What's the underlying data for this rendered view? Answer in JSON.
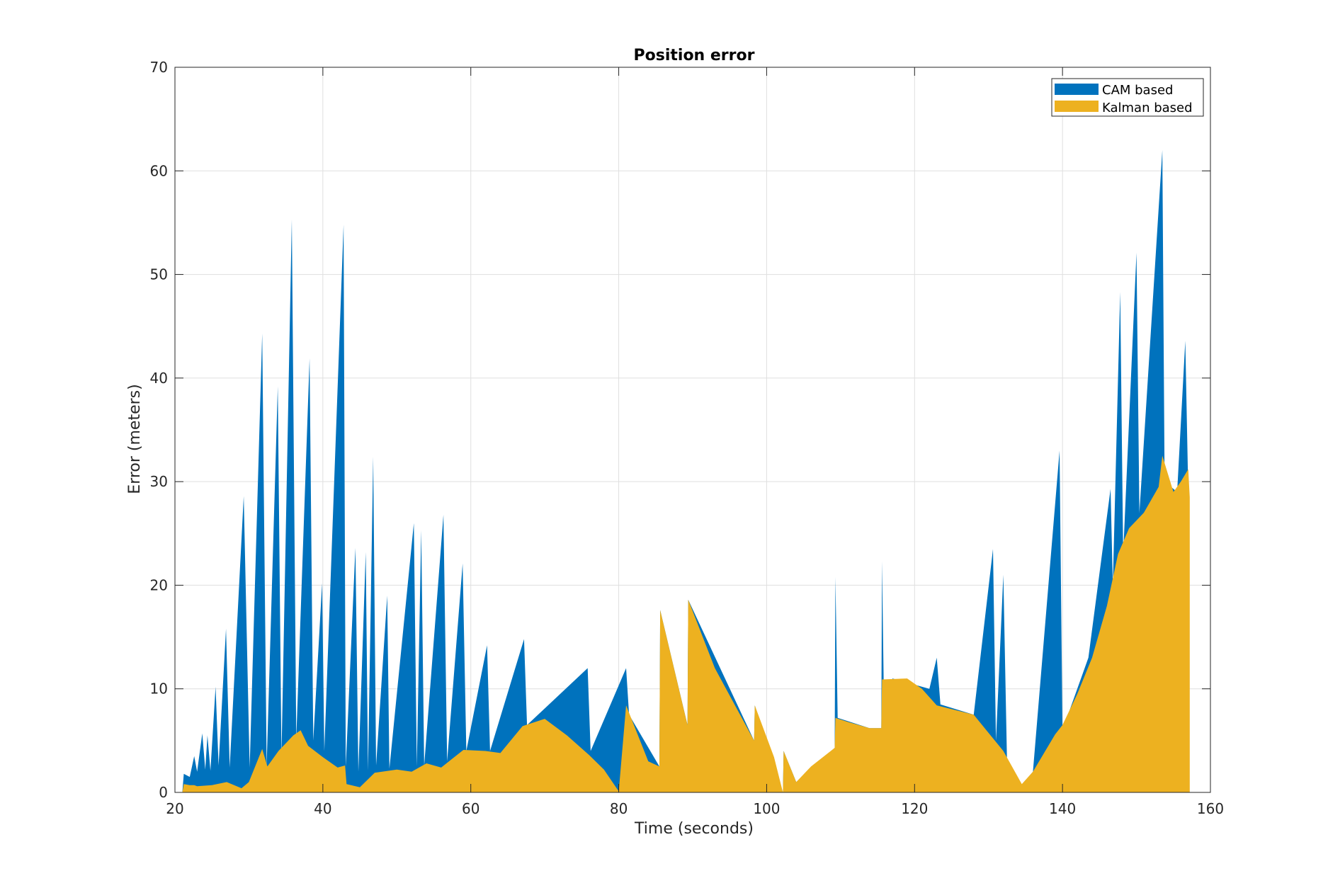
{
  "chart_data": {
    "type": "area",
    "title": "Position error",
    "xlabel": "Time (seconds)",
    "ylabel": "Error (meters)",
    "xlim": [
      20,
      160
    ],
    "ylim": [
      0,
      70
    ],
    "xticks": [
      20,
      40,
      60,
      80,
      100,
      120,
      140,
      160
    ],
    "yticks": [
      0,
      10,
      20,
      30,
      40,
      50,
      60,
      70
    ],
    "grid": true,
    "legend_position": "top-right",
    "series": [
      {
        "name": "CAM based",
        "color": "#0072BD",
        "points": [
          [
            21,
            0
          ],
          [
            21.2,
            1.8
          ],
          [
            22,
            1.5
          ],
          [
            22.6,
            3.5
          ],
          [
            23,
            2
          ],
          [
            23.7,
            5.7
          ],
          [
            24.1,
            2.2
          ],
          [
            24.4,
            5.5
          ],
          [
            24.8,
            2.1
          ],
          [
            25.5,
            10.2
          ],
          [
            25.9,
            2.6
          ],
          [
            26.9,
            15.8
          ],
          [
            27.4,
            2.4
          ],
          [
            29.3,
            28.6
          ],
          [
            30.1,
            2.4
          ],
          [
            31.8,
            44.3
          ],
          [
            32.4,
            2.6
          ],
          [
            33.9,
            39.2
          ],
          [
            34.4,
            3.5
          ],
          [
            35.8,
            55.3
          ],
          [
            36.4,
            5.2
          ],
          [
            38.2,
            41.9
          ],
          [
            38.7,
            5
          ],
          [
            39.9,
            20.2
          ],
          [
            40.2,
            4
          ],
          [
            42.8,
            54.8
          ],
          [
            43.1,
            2.5
          ],
          [
            44.4,
            23.6
          ],
          [
            44.8,
            2
          ],
          [
            45.8,
            23.2
          ],
          [
            46.1,
            2.1
          ],
          [
            46.8,
            32.4
          ],
          [
            47.2,
            2.6
          ],
          [
            48.7,
            19
          ],
          [
            49,
            2.3
          ],
          [
            52.3,
            26
          ],
          [
            52.7,
            2.5
          ],
          [
            53.3,
            25.3
          ],
          [
            53.7,
            2.6
          ],
          [
            56.3,
            26.8
          ],
          [
            56.8,
            3
          ],
          [
            58.9,
            22.1
          ],
          [
            59.4,
            4
          ],
          [
            62.2,
            14.2
          ],
          [
            62.6,
            4
          ],
          [
            67.2,
            14.8
          ],
          [
            67.6,
            6.5
          ],
          [
            75.8,
            12
          ],
          [
            76.2,
            4
          ],
          [
            81,
            12
          ],
          [
            81.4,
            7.5
          ],
          [
            85.5,
            2.5
          ],
          [
            85.6,
            17.6
          ],
          [
            89.3,
            6.5
          ],
          [
            89.4,
            18.6
          ],
          [
            98.3,
            5
          ],
          [
            98.4,
            8.4
          ],
          [
            102.2,
            0
          ],
          [
            102.3,
            4
          ],
          [
            104,
            1
          ],
          [
            109.2,
            4.3
          ],
          [
            109.3,
            20.8
          ],
          [
            109.6,
            7.2
          ],
          [
            113.9,
            6.2
          ],
          [
            115.5,
            6.2
          ],
          [
            115.6,
            22.3
          ],
          [
            115.9,
            6.5
          ],
          [
            117,
            11
          ],
          [
            122,
            10
          ],
          [
            123,
            13
          ],
          [
            123.5,
            8.5
          ],
          [
            128,
            7.5
          ],
          [
            130.6,
            23.5
          ],
          [
            131,
            5
          ],
          [
            132,
            21
          ],
          [
            132.5,
            3
          ],
          [
            134.5,
            0.7
          ],
          [
            136,
            2
          ],
          [
            139.6,
            33
          ],
          [
            140,
            6
          ],
          [
            143.5,
            13
          ],
          [
            146.5,
            29.3
          ],
          [
            146.8,
            20
          ],
          [
            147.8,
            48.3
          ],
          [
            148.2,
            23
          ],
          [
            150,
            52.1
          ],
          [
            150.4,
            27
          ],
          [
            153.5,
            62
          ],
          [
            153.8,
            30
          ],
          [
            155.5,
            29
          ],
          [
            156.6,
            43.6
          ],
          [
            157,
            29
          ],
          [
            157,
            0
          ]
        ]
      },
      {
        "name": "Kalman based",
        "color": "#EDB120",
        "points": [
          [
            21,
            0
          ],
          [
            21.2,
            0.8
          ],
          [
            22,
            0.7
          ],
          [
            22.6,
            0.7
          ],
          [
            23,
            0.6
          ],
          [
            25,
            0.7
          ],
          [
            27,
            1
          ],
          [
            29,
            0.4
          ],
          [
            30,
            1
          ],
          [
            31.8,
            4.2
          ],
          [
            32.5,
            2.5
          ],
          [
            34,
            4
          ],
          [
            36,
            5.5
          ],
          [
            37,
            6
          ],
          [
            38,
            4.5
          ],
          [
            40,
            3.4
          ],
          [
            42,
            2.4
          ],
          [
            43,
            2.6
          ],
          [
            43.2,
            0.8
          ],
          [
            45,
            0.5
          ],
          [
            47,
            1.9
          ],
          [
            50,
            2.2
          ],
          [
            52,
            2
          ],
          [
            54,
            2.8
          ],
          [
            56,
            2.4
          ],
          [
            59,
            4.1
          ],
          [
            62,
            4
          ],
          [
            64,
            3.8
          ],
          [
            67,
            6.4
          ],
          [
            70,
            7.1
          ],
          [
            73,
            5.5
          ],
          [
            76,
            3.6
          ],
          [
            78,
            2.2
          ],
          [
            80,
            0.1
          ],
          [
            81,
            8.4
          ],
          [
            84,
            3
          ],
          [
            85.5,
            2.5
          ],
          [
            85.6,
            17.6
          ],
          [
            89.3,
            6.5
          ],
          [
            89.4,
            18.6
          ],
          [
            93,
            12
          ],
          [
            98.3,
            5
          ],
          [
            98.4,
            8.4
          ],
          [
            101,
            3.4
          ],
          [
            102.2,
            0
          ],
          [
            102.3,
            4
          ],
          [
            104,
            1
          ],
          [
            106,
            2.5
          ],
          [
            109.2,
            4.3
          ],
          [
            109.3,
            7.2
          ],
          [
            111,
            6.8
          ],
          [
            113.9,
            6.2
          ],
          [
            115.5,
            6.2
          ],
          [
            115.6,
            10.9
          ],
          [
            119,
            11
          ],
          [
            121,
            10
          ],
          [
            123,
            8.4
          ],
          [
            128,
            7.5
          ],
          [
            132,
            4
          ],
          [
            134.5,
            0.8
          ],
          [
            136,
            2
          ],
          [
            139,
            5.6
          ],
          [
            140,
            6.5
          ],
          [
            142,
            9.5
          ],
          [
            144,
            13
          ],
          [
            146,
            18
          ],
          [
            147.5,
            23
          ],
          [
            149,
            25.5
          ],
          [
            151,
            27
          ],
          [
            153,
            29.5
          ],
          [
            153.5,
            32.5
          ],
          [
            155,
            29
          ],
          [
            156,
            30
          ],
          [
            157,
            31.2
          ],
          [
            157.2,
            28.5
          ],
          [
            157.2,
            0
          ]
        ]
      }
    ]
  }
}
